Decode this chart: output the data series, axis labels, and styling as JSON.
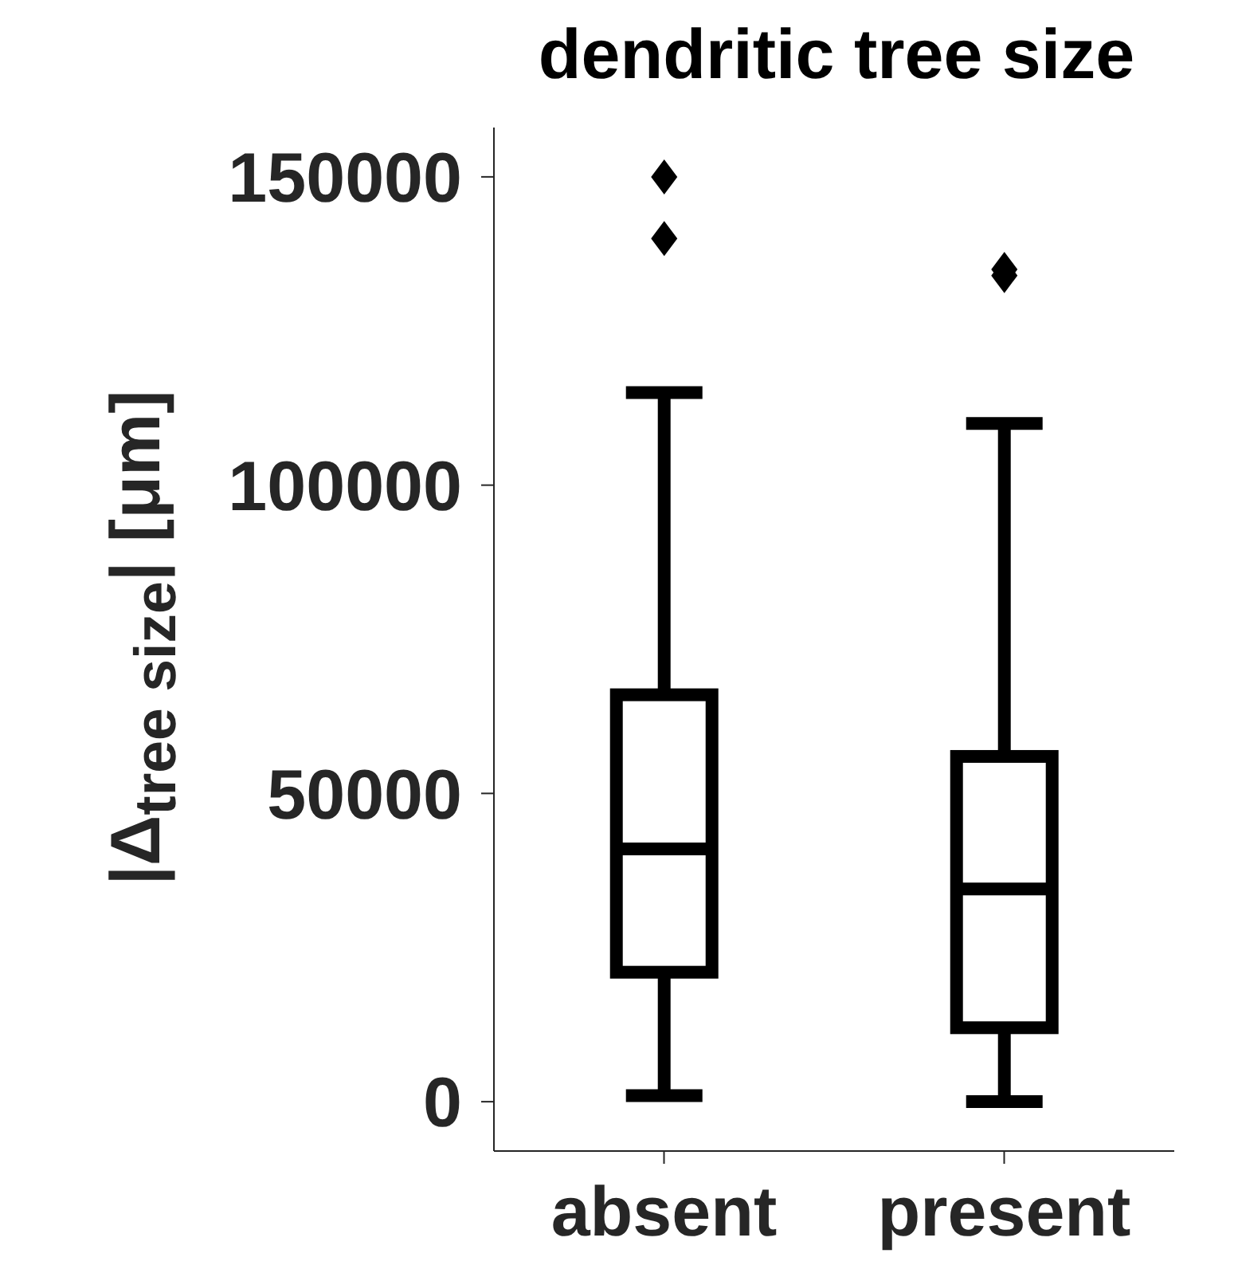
{
  "chart_data": {
    "type": "box",
    "title": "dendritic tree size",
    "ylabel": "|Δ$_{tree size}$| [μm]",
    "categories": [
      "absent",
      "present"
    ],
    "boxes": [
      {
        "low": 1000,
        "q1": 21000,
        "median": 41000,
        "q3": 66000,
        "high": 115000,
        "outliers": [
          140000,
          150000
        ]
      },
      {
        "low": 0,
        "q1": 12000,
        "median": 34500,
        "q3": 56000,
        "high": 110000,
        "outliers": [
          134000,
          135000
        ]
      }
    ],
    "color": "#000000",
    "marker": "diamond",
    "ylim": [
      -8000,
      158000
    ],
    "yticks": [
      0,
      50000,
      100000,
      150000
    ]
  }
}
